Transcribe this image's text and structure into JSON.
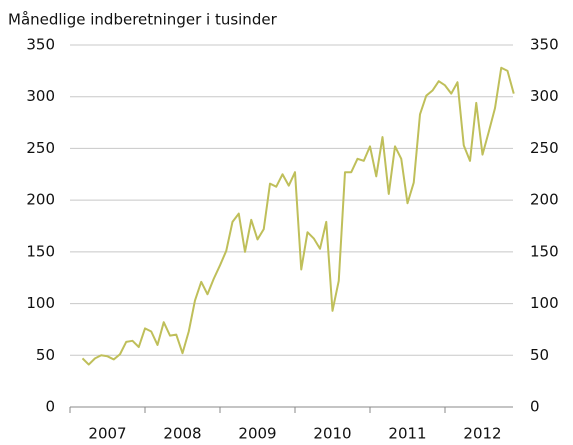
{
  "chart_data": {
    "type": "line",
    "title": "Månedlige indberetninger i tusinder",
    "categories": [
      null,
      null,
      null,
      null,
      null,
      null,
      null,
      null,
      null,
      null,
      null,
      null,
      null,
      null,
      null,
      null,
      null,
      null,
      null,
      null,
      null,
      null,
      null,
      null,
      null,
      null,
      null,
      null,
      null,
      null,
      null,
      null,
      null,
      null,
      null,
      null,
      null,
      null,
      null,
      null,
      null,
      null,
      null,
      null,
      null,
      null,
      null,
      null,
      null,
      null,
      null,
      null,
      null,
      null,
      null,
      null,
      null,
      null,
      null,
      null,
      null,
      null,
      null,
      null,
      null,
      null,
      null,
      null,
      null,
      null
    ],
    "values": [
      47,
      41,
      47,
      50,
      49,
      46,
      51,
      63,
      64,
      58,
      76,
      73,
      60,
      82,
      69,
      70,
      52,
      73,
      103,
      121,
      109,
      124,
      137,
      151,
      179,
      187,
      150,
      181,
      162,
      172,
      216,
      213,
      225,
      214,
      227,
      133,
      169,
      163,
      153,
      179,
      93,
      122,
      227,
      227,
      240,
      238,
      252,
      223,
      261,
      206,
      252,
      240,
      197,
      217,
      283,
      301,
      306,
      315,
      311,
      303,
      314,
      253,
      238,
      294,
      244,
      266,
      289,
      328,
      325,
      303
    ],
    "color": "#bfbf5a",
    "year_labels": [
      "2007",
      "2008",
      "2009",
      "2010",
      "2011",
      "2012"
    ],
    "ylim": [
      0,
      350
    ],
    "yticks": [
      0,
      50,
      100,
      150,
      200,
      250,
      300,
      350
    ],
    "grid": true
  }
}
